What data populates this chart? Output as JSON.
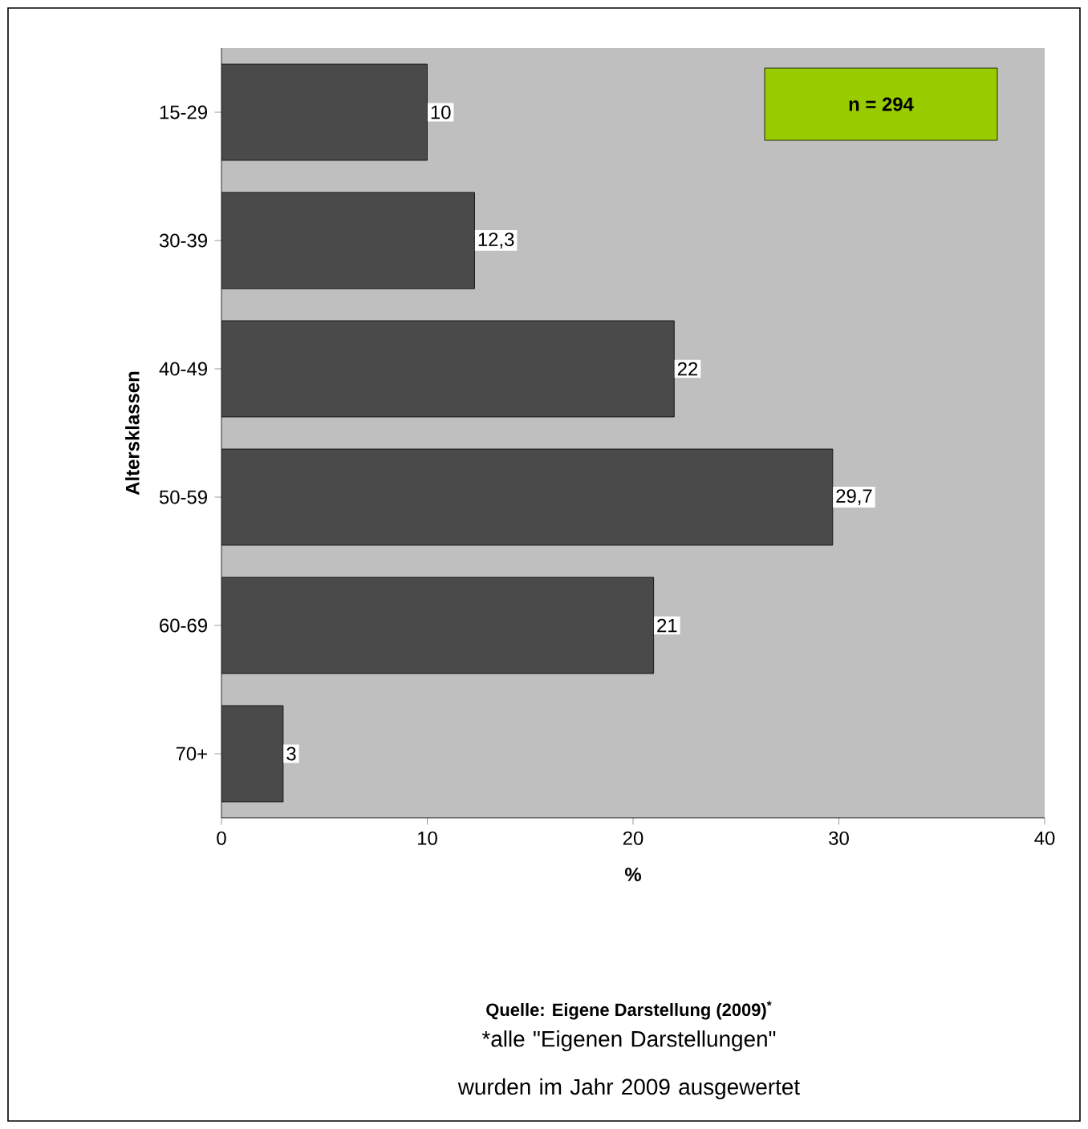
{
  "chart_data": {
    "type": "bar",
    "orientation": "horizontal",
    "categories": [
      "15-29",
      "30-39",
      "40-49",
      "50-59",
      "60-69",
      "70+"
    ],
    "values": [
      10,
      12.3,
      22,
      29.7,
      21,
      3
    ],
    "value_labels": [
      "10",
      "12,3",
      "22",
      "29,7",
      "21",
      "3"
    ],
    "color": "#4a4a4a",
    "xlim": [
      0,
      40
    ],
    "xticks": [
      0,
      10,
      20,
      30,
      40
    ],
    "xlabel": "%",
    "ylabel": "Altersklassen",
    "annotations": [
      "n = 294",
      "Quelle: Eigene Darstellung (2009)$^{*}$",
      "*alle \"Eigenen Darstellungen\" wurden im Jahr 2009 ausgewertet"
    ]
  }
}
